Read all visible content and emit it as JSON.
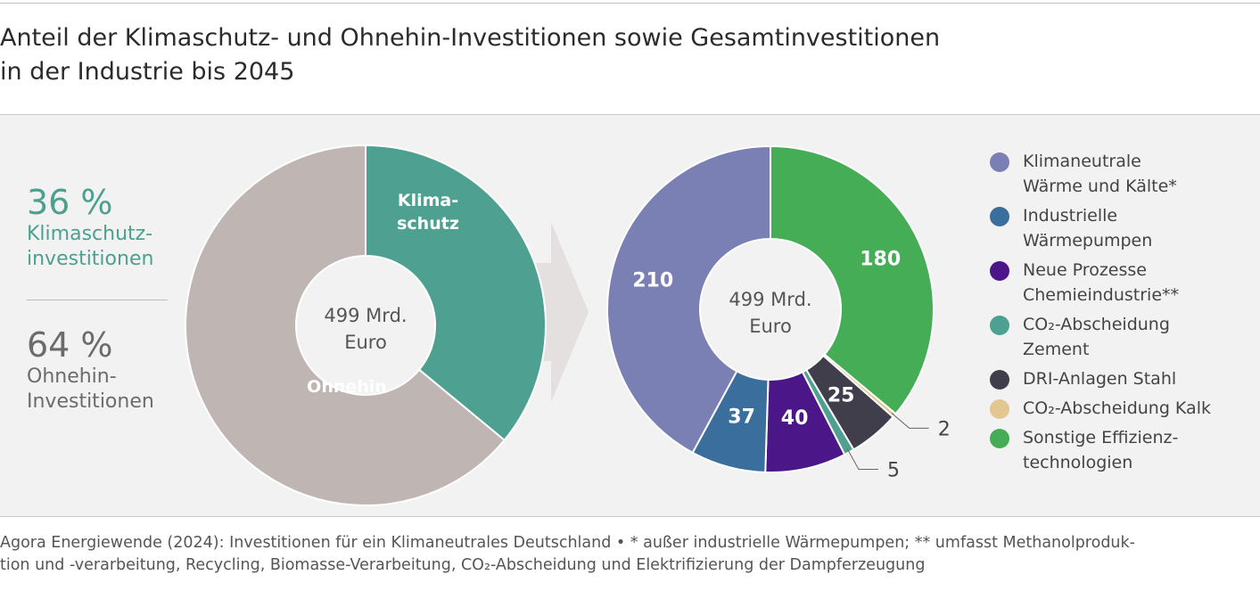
{
  "title": {
    "line1": "Anteil der Klimaschutz- und Ohnehin-Investitionen sowie Gesamtinvestitionen",
    "line2": "in der Industrie bis 2045"
  },
  "summary": {
    "klimaschutz_pct": "36 %",
    "klimaschutz_label": "Klimaschutz-\ninvestitionen",
    "ohnehin_pct": "64 %",
    "ohnehin_label": "Ohnehin-\nInvestitionen"
  },
  "source": {
    "line1": "Agora Energiewende (2024): Investitionen für ein Klimaneutrales Deutschland • * außer industrielle Wärmepumpen; ** umfasst Methanolproduk-",
    "line2": "tion und -verarbeitung, Recycling, Biomasse-Verarbeitung, CO₂-Abscheidung und Elektrifizierung der Dampferzeugung"
  },
  "chart_data": [
    {
      "type": "pie",
      "center_label": [
        "499 Mrd.",
        "Euro"
      ],
      "slices": [
        {
          "name": "Klima-\nschutz",
          "value": 36,
          "color": "#4ea190",
          "label_color": "#ffffff"
        },
        {
          "name": "Ohnehin",
          "value": 64,
          "color": "#bfb5b3",
          "label_color": "#ffffff"
        }
      ]
    },
    {
      "type": "pie",
      "center_label": [
        "499 Mrd.",
        "Euro"
      ],
      "slices": [
        {
          "name": "Sonstige Effizienz-\ntechnologien",
          "value": 180,
          "label": "180",
          "color": "#46ad57"
        },
        {
          "name": "CO₂-Abscheidung Kalk",
          "value": 2,
          "label": "2",
          "color": "#e4c693"
        },
        {
          "name": "DRI-Anlagen Stahl",
          "value": 25,
          "label": "25",
          "color": "#403e4a"
        },
        {
          "name": "CO₂-Abscheidung\nZement",
          "value": 5,
          "label": "5",
          "color": "#4ea190"
        },
        {
          "name": "Neue Prozesse\nChemieindustrie**",
          "value": 40,
          "label": "40",
          "color": "#4b1788"
        },
        {
          "name": "Industrielle\nWärmepumpen",
          "value": 37,
          "label": "37",
          "color": "#3a6e9d"
        },
        {
          "name": "Klimaneutrale\nWärme und Kälte*",
          "value": 210,
          "label": "210",
          "color": "#7b80b4"
        }
      ],
      "legend_order": [
        "Klimaneutrale\nWärme und Kälte*",
        "Industrielle\nWärmepumpen",
        "Neue Prozesse\nChemieindustrie**",
        "CO₂-Abscheidung\nZement",
        "DRI-Anlagen Stahl",
        "CO₂-Abscheidung Kalk",
        "Sonstige Effizienz-\ntechnologien"
      ]
    }
  ]
}
